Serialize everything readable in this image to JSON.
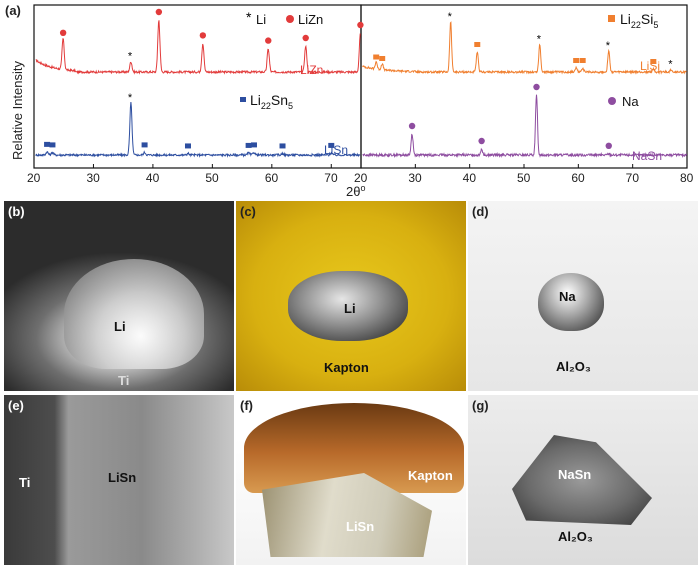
{
  "figure": {
    "panel_a": {
      "label": "(a)",
      "ylabel": "Relative Intensity",
      "xlabel": "2θ°",
      "left_xticks": [
        "20",
        "30",
        "40",
        "50",
        "60",
        "70"
      ],
      "right_xticks": [
        "20",
        "30",
        "40",
        "50",
        "60",
        "70",
        "80"
      ]
    },
    "photo_labels": {
      "b": "(b)",
      "c": "(c)",
      "d": "(d)",
      "e": "(e)",
      "f": "(f)",
      "g": "(g)"
    },
    "photo_text": {
      "b_li": "Li",
      "b_ti": "Ti",
      "c_li": "Li",
      "c_kapton": "Kapton",
      "d_na": "Na",
      "d_al2o3": "Al₂O₃",
      "e_ti": "Ti",
      "e_lisn": "LiSn",
      "f_kapton": "Kapton",
      "f_lisn": "LiSn",
      "g_nasn": "NaSn",
      "g_al2o3": "Al₂O₃"
    }
  },
  "chart_data": [
    {
      "type": "line",
      "panel": "left",
      "xlim": [
        20,
        75
      ],
      "series": [
        {
          "name": "LiZn",
          "color": "#e23b3b",
          "peaks": [
            [
              24.9,
              0.6
            ],
            [
              36.3,
              0.2
            ],
            [
              41.0,
              1.0
            ],
            [
              48.4,
              0.55
            ],
            [
              59.4,
              0.45
            ],
            [
              65.7,
              0.5
            ],
            [
              74.9,
              0.75
            ]
          ]
        },
        {
          "name": "LiSn",
          "color": "#2d4ea0",
          "peaks": [
            [
              22.2,
              0.06
            ],
            [
              23.1,
              0.05
            ],
            [
              36.3,
              1.0
            ],
            [
              38.6,
              0.05
            ],
            [
              45.9,
              0.03
            ],
            [
              56.1,
              0.04
            ],
            [
              57.0,
              0.05
            ],
            [
              61.8,
              0.03
            ],
            [
              70.0,
              0.04
            ]
          ]
        }
      ],
      "legend_symbols": [
        {
          "label": "Li",
          "marker": "star",
          "color": "#000000"
        },
        {
          "label": "LiZn",
          "marker": "circle",
          "color": "#e23b3b"
        },
        {
          "label": "Li22Sn5",
          "marker": "square",
          "color": "#2d4ea0"
        }
      ]
    },
    {
      "type": "line",
      "panel": "right",
      "xlim": [
        20,
        80
      ],
      "series": [
        {
          "name": "LiSi",
          "color": "#f07f2f",
          "peaks": [
            [
              22.8,
              0.15
            ],
            [
              23.9,
              0.12
            ],
            [
              36.5,
              1.0
            ],
            [
              41.4,
              0.4
            ],
            [
              52.9,
              0.55
            ],
            [
              59.6,
              0.08
            ],
            [
              60.8,
              0.08
            ],
            [
              65.6,
              0.42
            ],
            [
              73.8,
              0.06
            ],
            [
              77.1,
              0.05
            ]
          ]
        },
        {
          "name": "NaSn",
          "color": "#8e4da0",
          "peaks": [
            [
              29.4,
              0.35
            ],
            [
              42.2,
              0.1
            ],
            [
              52.3,
              1.0
            ],
            [
              65.6,
              0.02
            ]
          ]
        }
      ],
      "legend_symbols": [
        {
          "label": "Li22Si5",
          "marker": "square",
          "color": "#f07f2f"
        },
        {
          "label": "Na",
          "marker": "circle",
          "color": "#8e4da0"
        }
      ]
    }
  ]
}
